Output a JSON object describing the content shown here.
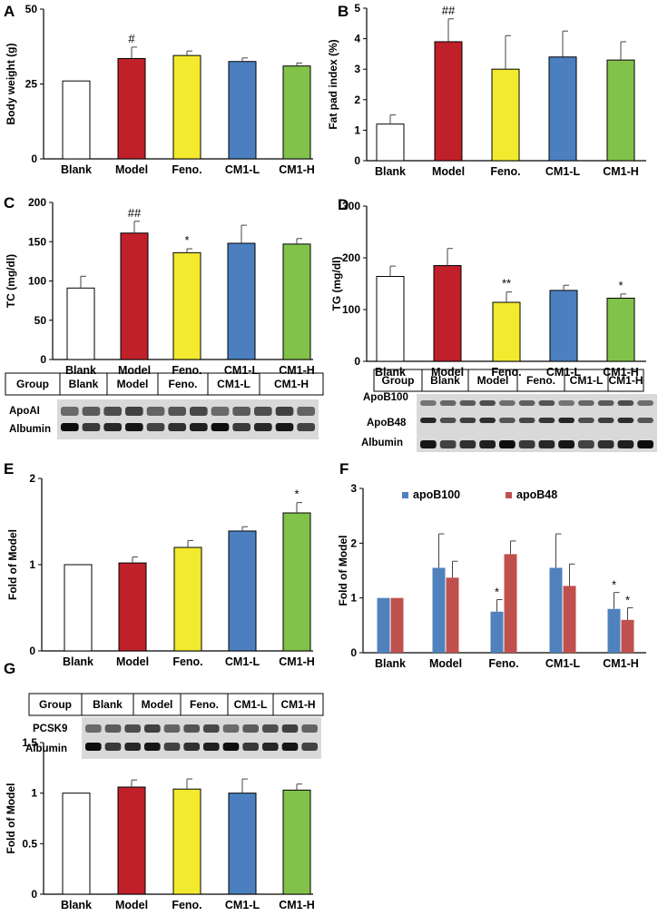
{
  "colors": {
    "Blank": "#ffffff",
    "Model": "#c0202a",
    "Feno.": "#f2ea2e",
    "CM1-L": "#4b7fc0",
    "CM1-H": "#82c24a",
    "apoB100": "#4f81bd",
    "apoB48": "#c0504d"
  },
  "chart_data": [
    {
      "id": "A",
      "panel_label": "A",
      "type": "bar",
      "categories": [
        "Blank",
        "Model",
        "Feno.",
        "CM1-L",
        "CM1-H"
      ],
      "values": [
        26,
        33.5,
        34.5,
        32.5,
        31
      ],
      "errors": [
        0,
        3.8,
        1.5,
        1.2,
        1
      ],
      "annotations": [
        "",
        "#",
        "",
        "",
        ""
      ],
      "ylabel": "Body weight (g)",
      "ylim": [
        0,
        50
      ],
      "yticks": [
        0,
        25,
        50
      ]
    },
    {
      "id": "B",
      "panel_label": "B",
      "type": "bar",
      "categories": [
        "Blank",
        "Model",
        "Feno.",
        "CM1-L",
        "CM1-H"
      ],
      "values": [
        1.2,
        3.9,
        3.0,
        3.4,
        3.3
      ],
      "errors": [
        0.3,
        0.75,
        1.1,
        0.85,
        0.6
      ],
      "annotations": [
        "",
        "##",
        "",
        "",
        ""
      ],
      "ylabel": "Fat pad index (%)",
      "ylim": [
        0,
        5
      ],
      "yticks": [
        0,
        1,
        2,
        3,
        4,
        5
      ]
    },
    {
      "id": "C",
      "panel_label": "C",
      "type": "bar",
      "categories": [
        "Blank",
        "Model",
        "Feno.",
        "CM1-L",
        "CM1-H"
      ],
      "values": [
        91,
        161,
        136,
        148,
        147
      ],
      "errors": [
        15,
        15,
        5,
        23,
        7
      ],
      "annotations": [
        "",
        "##",
        "*",
        "",
        ""
      ],
      "ylabel": "TC (mg/dl)",
      "ylim": [
        0,
        200
      ],
      "yticks": [
        0,
        50,
        100,
        150,
        200
      ]
    },
    {
      "id": "D",
      "panel_label": "D",
      "type": "bar",
      "categories": [
        "Blank",
        "Model",
        "Feno.",
        "CM1-L",
        "CM1-H"
      ],
      "values": [
        164,
        185,
        114,
        137,
        122
      ],
      "errors": [
        20,
        33,
        20,
        10,
        8
      ],
      "annotations": [
        "",
        "",
        "**",
        "",
        "*"
      ],
      "ylabel": "TG (mg/dl)",
      "ylim": [
        0,
        300
      ],
      "yticks": [
        0,
        100,
        200,
        300
      ]
    },
    {
      "id": "E",
      "panel_label": "E",
      "type": "bar",
      "categories": [
        "Blank",
        "Model",
        "Feno.",
        "CM1-L",
        "CM1-H"
      ],
      "values": [
        1.0,
        1.02,
        1.2,
        1.39,
        1.6
      ],
      "errors": [
        0,
        0.07,
        0.08,
        0.05,
        0.12
      ],
      "annotations": [
        "",
        "",
        "",
        "",
        "*"
      ],
      "ylabel": "Fold of Model",
      "ylim": [
        0,
        2
      ],
      "yticks": [
        0,
        1,
        2
      ]
    },
    {
      "id": "F",
      "panel_label": "F",
      "type": "bar",
      "categories": [
        "Blank",
        "Model",
        "Feno.",
        "CM1-L",
        "CM1-H"
      ],
      "series": [
        {
          "name": "apoB100",
          "values": [
            1.0,
            1.55,
            0.75,
            1.55,
            0.8
          ],
          "errors": [
            0,
            0.62,
            0.22,
            0.62,
            0.3
          ],
          "annotations": [
            "",
            "",
            "*",
            "",
            "*"
          ]
        },
        {
          "name": "apoB48",
          "values": [
            1.0,
            1.37,
            1.8,
            1.22,
            0.6
          ],
          "errors": [
            0,
            0.3,
            0.24,
            0.4,
            0.22
          ],
          "annotations": [
            "",
            "",
            "",
            "",
            "*"
          ]
        }
      ],
      "ylabel": "Fold of Model",
      "ylim": [
        0,
        3
      ],
      "yticks": [
        0,
        1,
        2,
        3
      ],
      "legend": "top"
    },
    {
      "id": "G",
      "panel_label": "G",
      "type": "bar",
      "categories": [
        "Blank",
        "Model",
        "Feno.",
        "CM1-L",
        "CM1-H"
      ],
      "values": [
        1.0,
        1.06,
        1.04,
        1.0,
        1.03
      ],
      "errors": [
        0,
        0.07,
        0.1,
        0.14,
        0.06
      ],
      "annotations": [
        "",
        "",
        "",
        "",
        ""
      ],
      "ylabel": "Fold of Model",
      "ylim": [
        0,
        1.5
      ],
      "yticks": [
        0,
        0.5,
        1,
        1.5
      ]
    }
  ],
  "blots": {
    "E": {
      "group_header": "Group",
      "groups": [
        "Blank",
        "Model",
        "Feno.",
        "CM1-L",
        "CM1-H"
      ],
      "bands": [
        "ApoAI",
        "Albumin"
      ]
    },
    "F": {
      "group_header": "Group",
      "groups": [
        "Blank",
        "Model",
        "Feno.",
        "CM1-L",
        "CM1-H"
      ],
      "bands": [
        "ApoB100",
        "ApoB48",
        "Albumin"
      ]
    },
    "G": {
      "group_header": "Group",
      "groups": [
        "Blank",
        "Model",
        "Feno.",
        "CM1-L",
        "CM1-H"
      ],
      "bands": [
        "PCSK9",
        "Albumin"
      ]
    }
  }
}
